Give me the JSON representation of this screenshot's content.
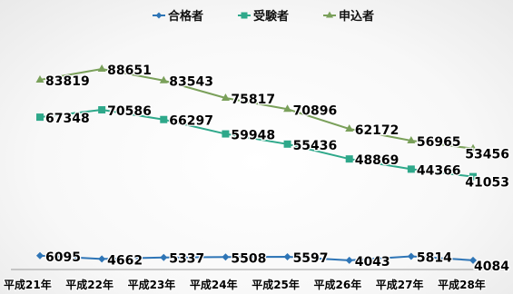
{
  "chart_data": {
    "type": "line",
    "title": "",
    "xlabel": "",
    "ylabel": "",
    "ylim": [
      0,
      95000
    ],
    "grid": false,
    "legend_position": "top",
    "categories": [
      "平成21年",
      "平成22年",
      "平成23年",
      "平成24年",
      "平成25年",
      "平成26年",
      "平成27年",
      "平成28年"
    ],
    "series": [
      {
        "name": "合格者",
        "color": "#2e75b6",
        "marker": "diamond",
        "values": [
          6095,
          4662,
          5337,
          5508,
          5597,
          4043,
          5814,
          4084
        ]
      },
      {
        "name": "受験者",
        "color": "#2ea88a",
        "marker": "square",
        "values": [
          67348,
          70586,
          66297,
          59948,
          55436,
          48869,
          44366,
          41053
        ]
      },
      {
        "name": "申込者",
        "color": "#7aa05a",
        "marker": "triangle",
        "values": [
          83819,
          88651,
          83543,
          75817,
          70896,
          62172,
          56965,
          53456
        ]
      }
    ]
  }
}
